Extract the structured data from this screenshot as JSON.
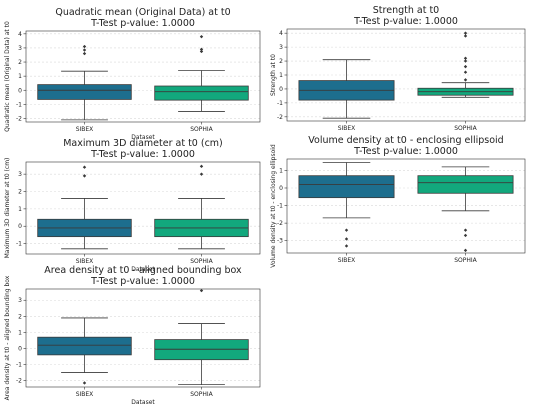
{
  "colors": {
    "sibex": "#1d6e8e",
    "sophia": "#12a87d",
    "grid": "#d9d9d9",
    "ink": "#222222"
  },
  "chart_data": [
    {
      "type": "box",
      "title": "Quadratic mean (Original Data) at t0",
      "subtitle": "T-Test p-value: 1.0000",
      "xlabel": "Dataset",
      "ylabel": "Quadratic mean (Original Data) at t0",
      "categories": [
        "SIBEX",
        "SOPHIA"
      ],
      "yticks": [
        -2,
        -1,
        0,
        1,
        2,
        3,
        4
      ],
      "ylim": [
        -2.25,
        4.2
      ],
      "grid": true,
      "boxes": [
        {
          "category": "SIBEX",
          "whisker_low": -2.1,
          "q1": -0.65,
          "median": 0.0,
          "q3": 0.4,
          "whisker_high": 1.35,
          "outliers": [
            2.6,
            2.85,
            3.1
          ]
        },
        {
          "category": "SOPHIA",
          "whisker_low": -1.5,
          "q1": -0.7,
          "median": -0.1,
          "q3": 0.3,
          "whisker_high": 1.4,
          "outliers": [
            2.75,
            2.9,
            3.8
          ]
        }
      ]
    },
    {
      "type": "box",
      "title": "Strength at t0",
      "subtitle": "T-Test p-value: 1.0000",
      "xlabel": "",
      "ylabel": "Strength at t0",
      "categories": [
        "SIBEX",
        "SOPHIA"
      ],
      "yticks": [
        -2,
        -1,
        0,
        1,
        2,
        3,
        4
      ],
      "ylim": [
        -2.3,
        4.3
      ],
      "grid": true,
      "boxes": [
        {
          "category": "SIBEX",
          "whisker_low": -2.1,
          "q1": -0.8,
          "median": -0.1,
          "q3": 0.6,
          "whisker_high": 2.1,
          "outliers": []
        },
        {
          "category": "SOPHIA",
          "whisker_low": -0.6,
          "q1": -0.45,
          "median": -0.2,
          "q3": 0.05,
          "whisker_high": 0.45,
          "outliers": [
            0.65,
            1.2,
            1.6,
            2.0,
            2.2,
            3.8,
            4.0
          ]
        }
      ]
    },
    {
      "type": "box",
      "title": "Maximum 3D diameter at t0 (cm)",
      "subtitle": "T-Test p-value: 1.0000",
      "xlabel": "Dataset",
      "ylabel": "Maximum 3D diameter at t0 (cm)",
      "categories": [
        "SIBEX",
        "SOPHIA"
      ],
      "yticks": [
        -1,
        0,
        1,
        2,
        3
      ],
      "ylim": [
        -1.6,
        3.7
      ],
      "grid": true,
      "boxes": [
        {
          "category": "SIBEX",
          "whisker_low": -1.3,
          "q1": -0.6,
          "median": -0.1,
          "q3": 0.4,
          "whisker_high": 1.6,
          "outliers": [
            2.9,
            3.4
          ]
        },
        {
          "category": "SOPHIA",
          "whisker_low": -1.3,
          "q1": -0.6,
          "median": -0.1,
          "q3": 0.4,
          "whisker_high": 1.6,
          "outliers": [
            3.0,
            3.45
          ]
        }
      ]
    },
    {
      "type": "box",
      "title": "Volume density at t0 - enclosing ellipsoid",
      "subtitle": "T-Test p-value: 1.0000",
      "xlabel": "",
      "ylabel": "Volume density at t0 - enclosing ellipsoid",
      "categories": [
        "SIBEX",
        "SOPHIA"
      ],
      "yticks": [
        -3,
        -2,
        -1,
        0,
        1
      ],
      "ylim": [
        -3.7,
        1.65
      ],
      "grid": true,
      "boxes": [
        {
          "category": "SIBEX",
          "whisker_low": -1.7,
          "q1": -0.55,
          "median": 0.2,
          "q3": 0.7,
          "whisker_high": 1.45,
          "outliers": [
            -2.4,
            -2.9,
            -3.3
          ]
        },
        {
          "category": "SOPHIA",
          "whisker_low": -1.3,
          "q1": -0.3,
          "median": 0.3,
          "q3": 0.7,
          "whisker_high": 1.2,
          "outliers": [
            -2.4,
            -2.7,
            -3.55
          ]
        }
      ]
    },
    {
      "type": "box",
      "title": "Area density at t0 - aligned bounding box",
      "subtitle": "T-Test p-value: 1.0000",
      "xlabel": "Dataset",
      "ylabel": "Area density at t0 - aligned bounding box",
      "categories": [
        "SIBEX",
        "SOPHIA"
      ],
      "yticks": [
        -2,
        -1,
        0,
        1,
        2,
        3
      ],
      "ylim": [
        -2.4,
        3.7
      ],
      "grid": true,
      "boxes": [
        {
          "category": "SIBEX",
          "whisker_low": -1.5,
          "q1": -0.4,
          "median": 0.2,
          "q3": 0.7,
          "whisker_high": 1.9,
          "outliers": [
            -2.15
          ]
        },
        {
          "category": "SOPHIA",
          "whisker_low": -2.25,
          "q1": -0.7,
          "median": -0.05,
          "q3": 0.55,
          "whisker_high": 1.55,
          "outliers": [
            3.6
          ]
        }
      ]
    }
  ]
}
